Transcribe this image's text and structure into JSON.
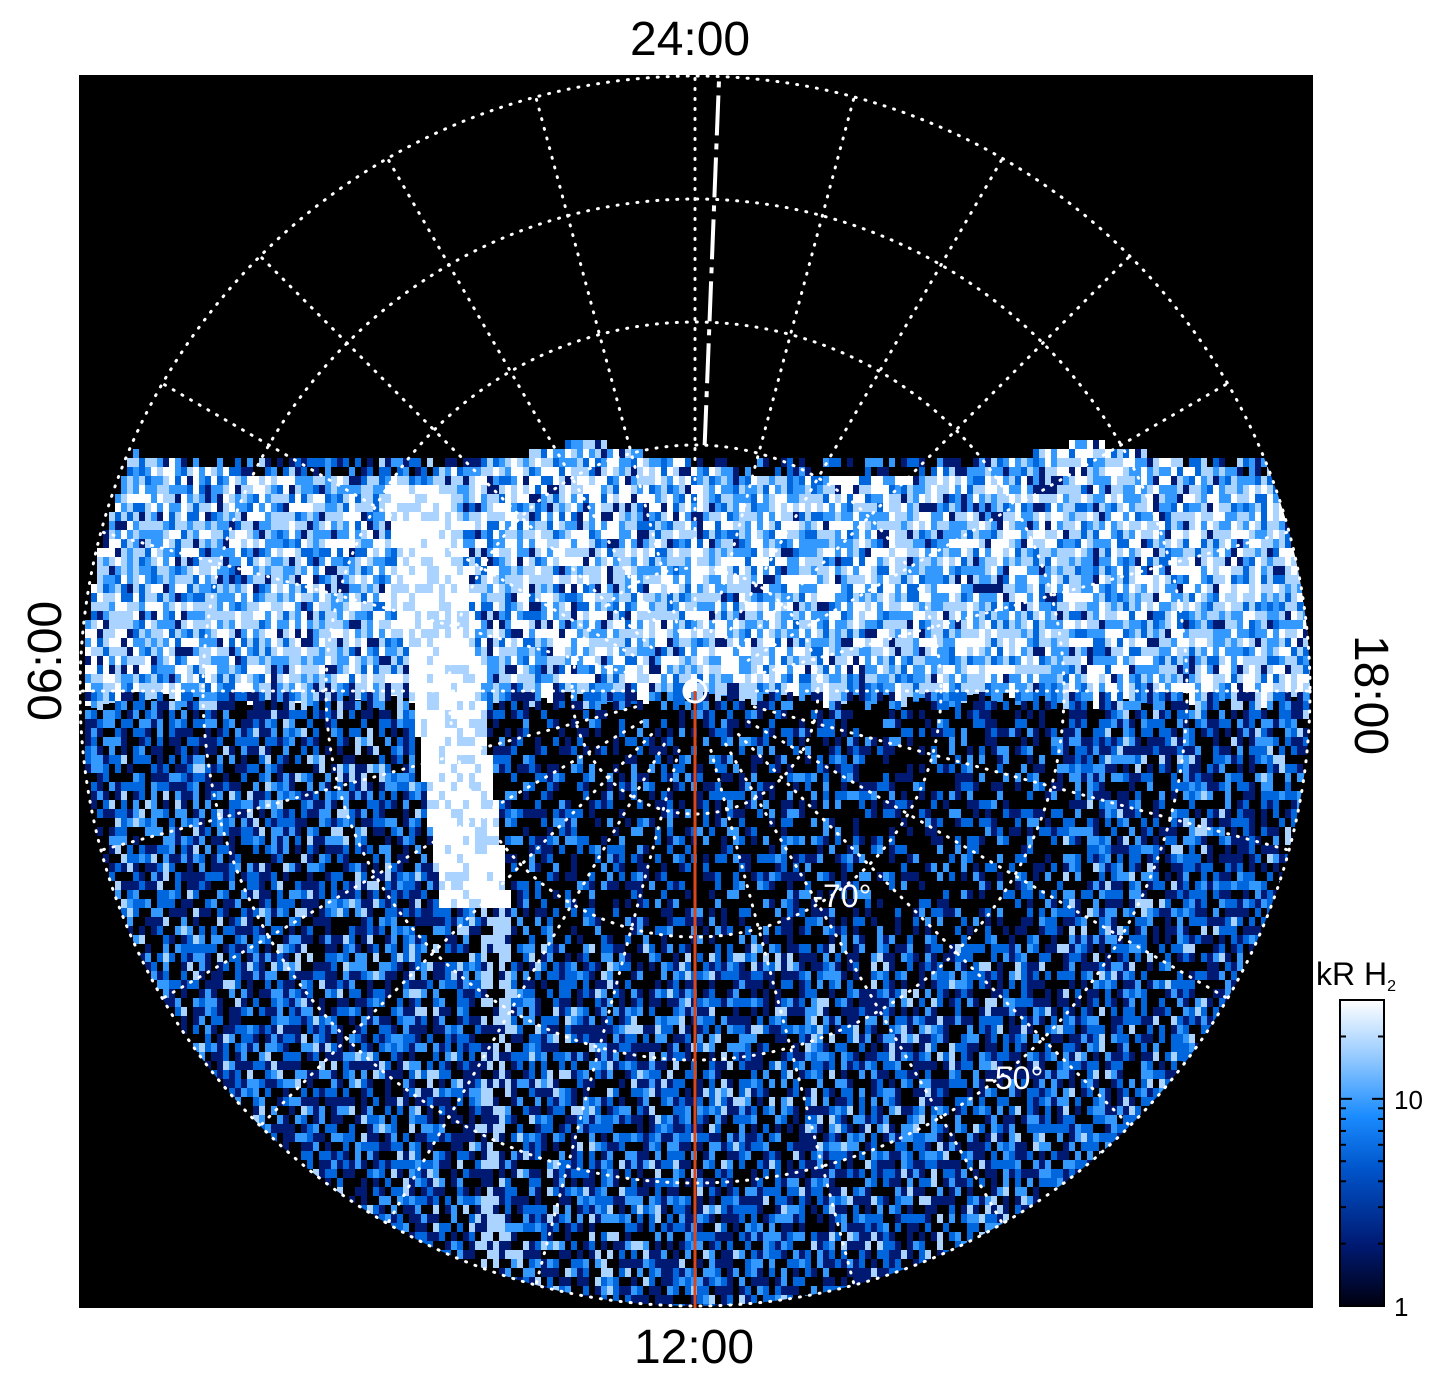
{
  "chart_data": {
    "type": "heatmap",
    "projection": "polar",
    "time_labels": {
      "top": "24:00",
      "bottom": "12:00",
      "left": "06:00",
      "right": "18:00"
    },
    "latitude_labels": [
      {
        "value": -70,
        "text": "-70°",
        "mlt_hours": 13.9
      },
      {
        "value": -50,
        "text": "-50°",
        "mlt_hours": 14.4
      }
    ],
    "latitude_circles": [
      -80,
      -70,
      -60,
      -50,
      -40
    ],
    "meridian_hours": [
      0,
      1,
      2,
      3,
      4,
      5,
      6,
      7,
      8,
      9,
      10,
      11,
      12,
      13,
      14,
      15,
      16,
      17,
      18,
      19,
      20,
      21,
      22,
      23
    ],
    "grid": true,
    "grid_style": "dotted white",
    "background": "#000000",
    "reference_line": {
      "mlt_hours": 12,
      "color": "#d9481c"
    },
    "dashed_meridian_mlt": 23.85,
    "colorbar": {
      "label": "kR H",
      "label_subscript": "2",
      "scale": "log",
      "ticks": [
        1,
        10
      ],
      "tick_labels": [
        "1",
        "10"
      ],
      "range": [
        1,
        30
      ],
      "colors": [
        "#000010",
        "#001a73",
        "#0066dd",
        "#3399ff",
        "#aad4ff",
        "#ffffff"
      ]
    },
    "emission_band": {
      "description": "",
      "intensity_peak": 30
    }
  },
  "colors": {
    "background": "#000000",
    "grid": "#ffffff",
    "reference_line": "#d9481c"
  }
}
